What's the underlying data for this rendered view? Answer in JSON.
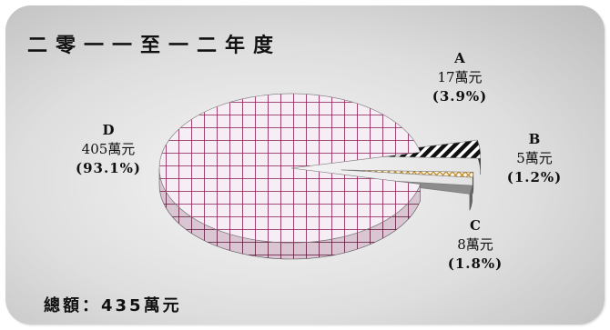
{
  "header": {
    "title": "二零一一至一二年度"
  },
  "footer": {
    "total_label": "總額：",
    "total_value": "435萬元"
  },
  "colors": {
    "D": "#f5eef5",
    "D_grid": "#8a1a52",
    "A": "#111111",
    "B": "#c48a2a",
    "C": "#8c8c8c"
  },
  "chart_data": {
    "type": "pie",
    "title": "二零一一至一二年度",
    "unit": "萬元",
    "total": 435,
    "slices": [
      {
        "name": "A",
        "value": 17,
        "value_text": "17萬元",
        "percent_text": "(3.9%)",
        "pattern": "diagonal-stripes"
      },
      {
        "name": "B",
        "value": 5,
        "value_text": "5萬元",
        "percent_text": "(1.2%)",
        "pattern": "crosshatch-diamond"
      },
      {
        "name": "C",
        "value": 8,
        "value_text": "8萬元",
        "percent_text": "(1.8%)",
        "pattern": "solid-gray"
      },
      {
        "name": "D",
        "value": 405,
        "value_text": "405萬元",
        "percent_text": "(93.1%)",
        "pattern": "grid"
      }
    ],
    "legend": "none",
    "style": "3d-exploded"
  }
}
